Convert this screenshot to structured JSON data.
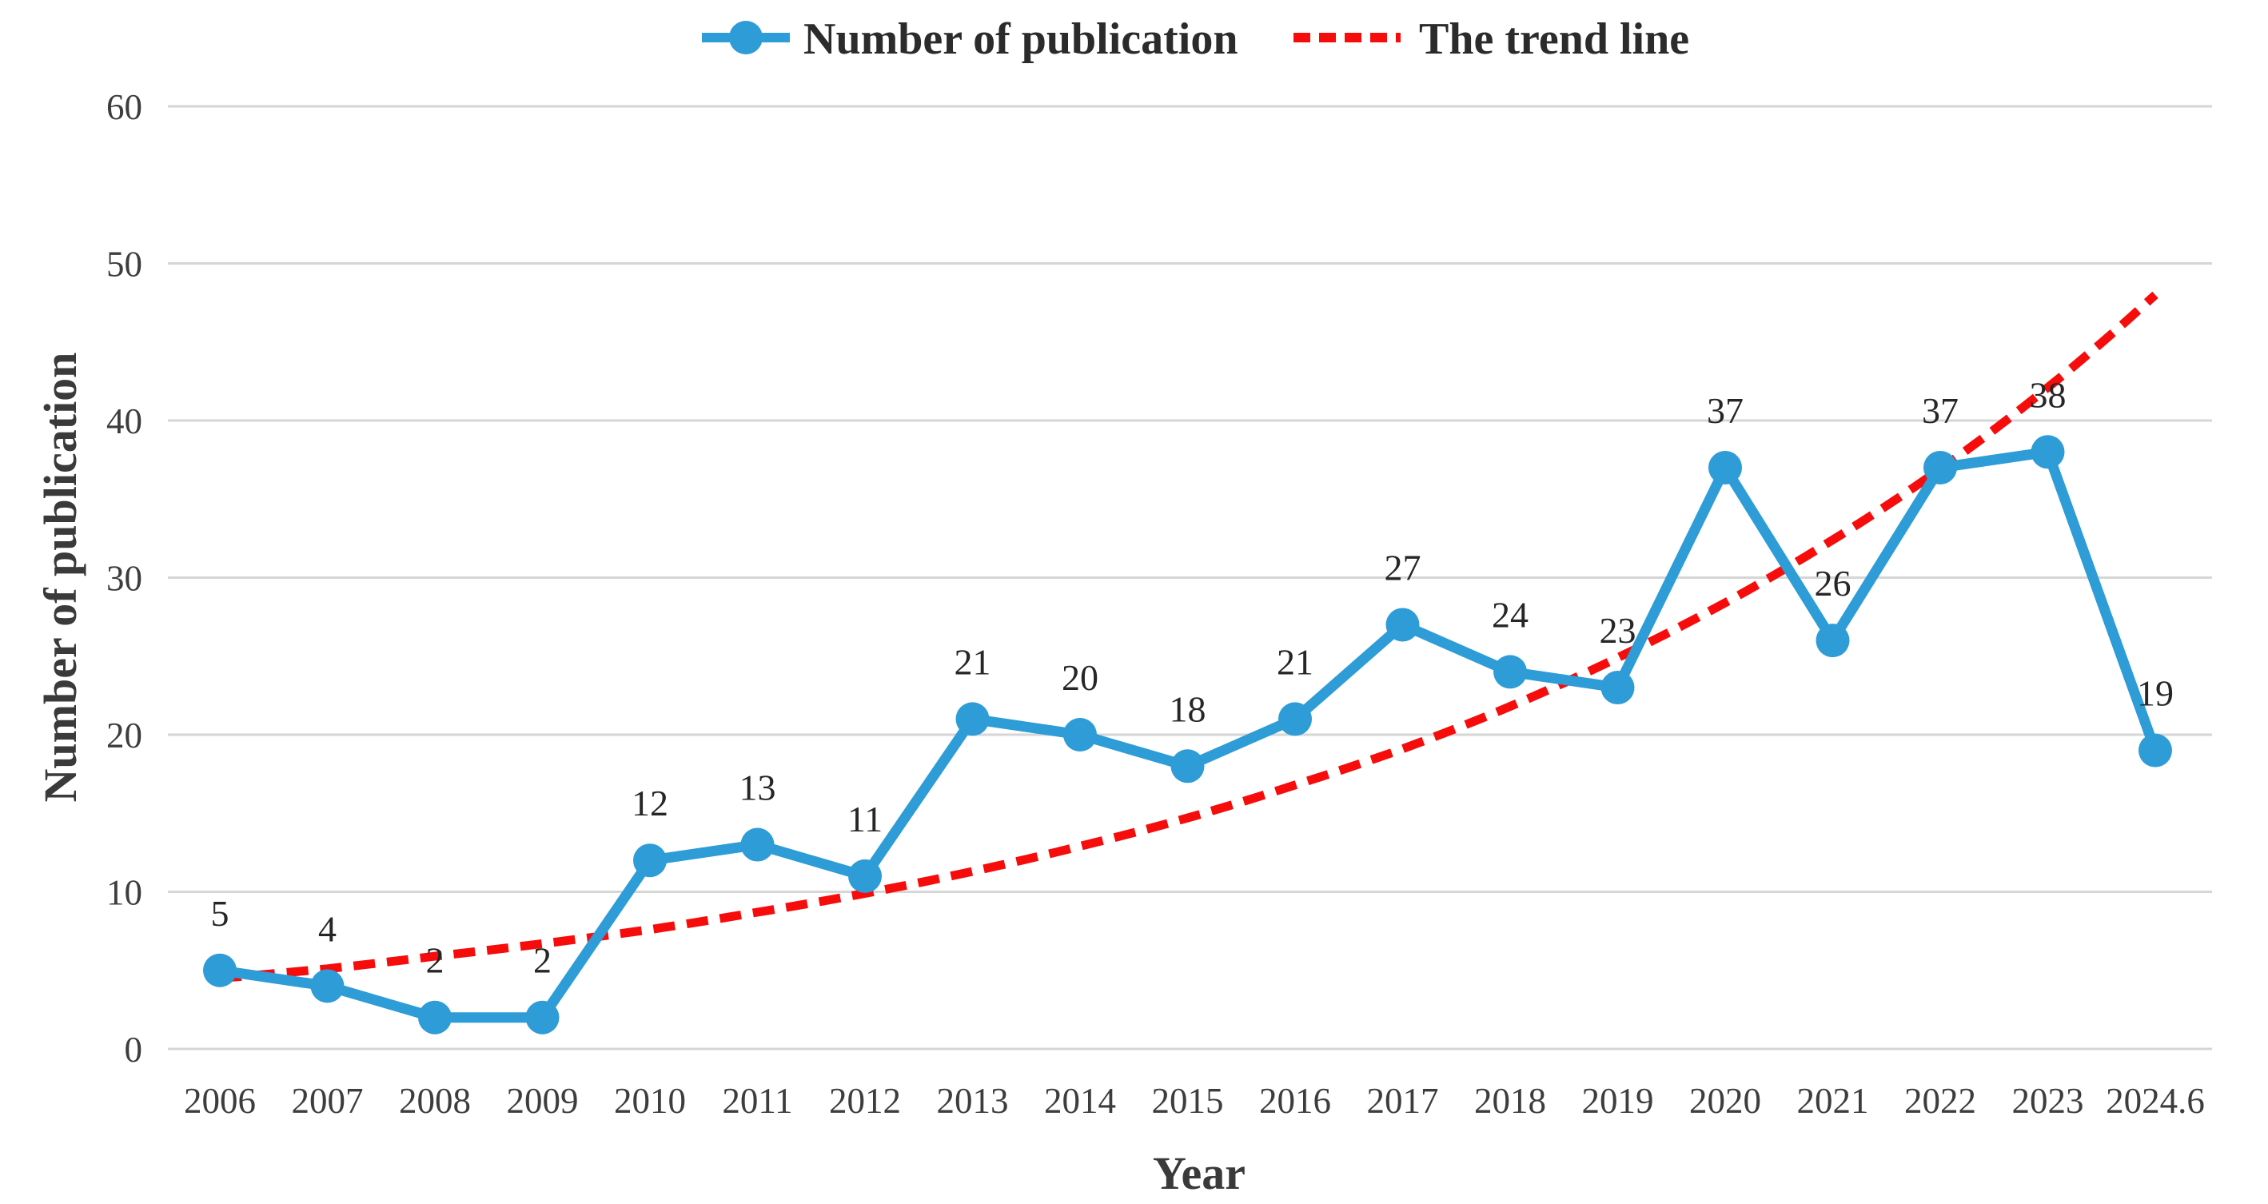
{
  "chart_data": {
    "type": "line",
    "title": "",
    "xlabel": "Year",
    "ylabel": "Number of publication",
    "ylim": [
      0,
      60
    ],
    "ytick_step": 10,
    "yticks": [
      0,
      10,
      20,
      30,
      40,
      50,
      60
    ],
    "grid": "horizontal",
    "legend_position": "top-center",
    "categories": [
      "2006",
      "2007",
      "2008",
      "2009",
      "2010",
      "2011",
      "2012",
      "2013",
      "2014",
      "2015",
      "2016",
      "2017",
      "2018",
      "2019",
      "2020",
      "2021",
      "2022",
      "2023",
      "2024.6"
    ],
    "series": [
      {
        "name": "Number of publication",
        "type": "line",
        "marker": "circle",
        "style": "solid",
        "color": "#2e9cd6",
        "values": [
          5,
          4,
          2,
          2,
          12,
          13,
          11,
          21,
          20,
          18,
          21,
          27,
          24,
          23,
          37,
          26,
          37,
          38,
          19
        ],
        "data_labels": [
          "5",
          "4",
          "2",
          "2",
          "12",
          "13",
          "11",
          "21",
          "20",
          "18",
          "21",
          "27",
          "24",
          "23",
          "37",
          "26",
          "37",
          "38",
          "19"
        ]
      },
      {
        "name": "The trend line",
        "type": "line",
        "marker": "none",
        "style": "dashed",
        "color": "#f70c0c",
        "values": [
          4.5,
          5.1,
          5.9,
          6.7,
          7.6,
          8.7,
          9.9,
          11.3,
          12.9,
          14.7,
          16.8,
          19.1,
          21.8,
          24.9,
          28.4,
          32.4,
          36.9,
          42.1,
          48.0
        ]
      }
    ],
    "colors": {
      "gridline": "#d6d6d6",
      "tick_text": "#3d3d3d",
      "data_label_text": "#262626",
      "legend_text": "#2b2b2b",
      "axis_title_text": "#3a3a3a"
    }
  }
}
